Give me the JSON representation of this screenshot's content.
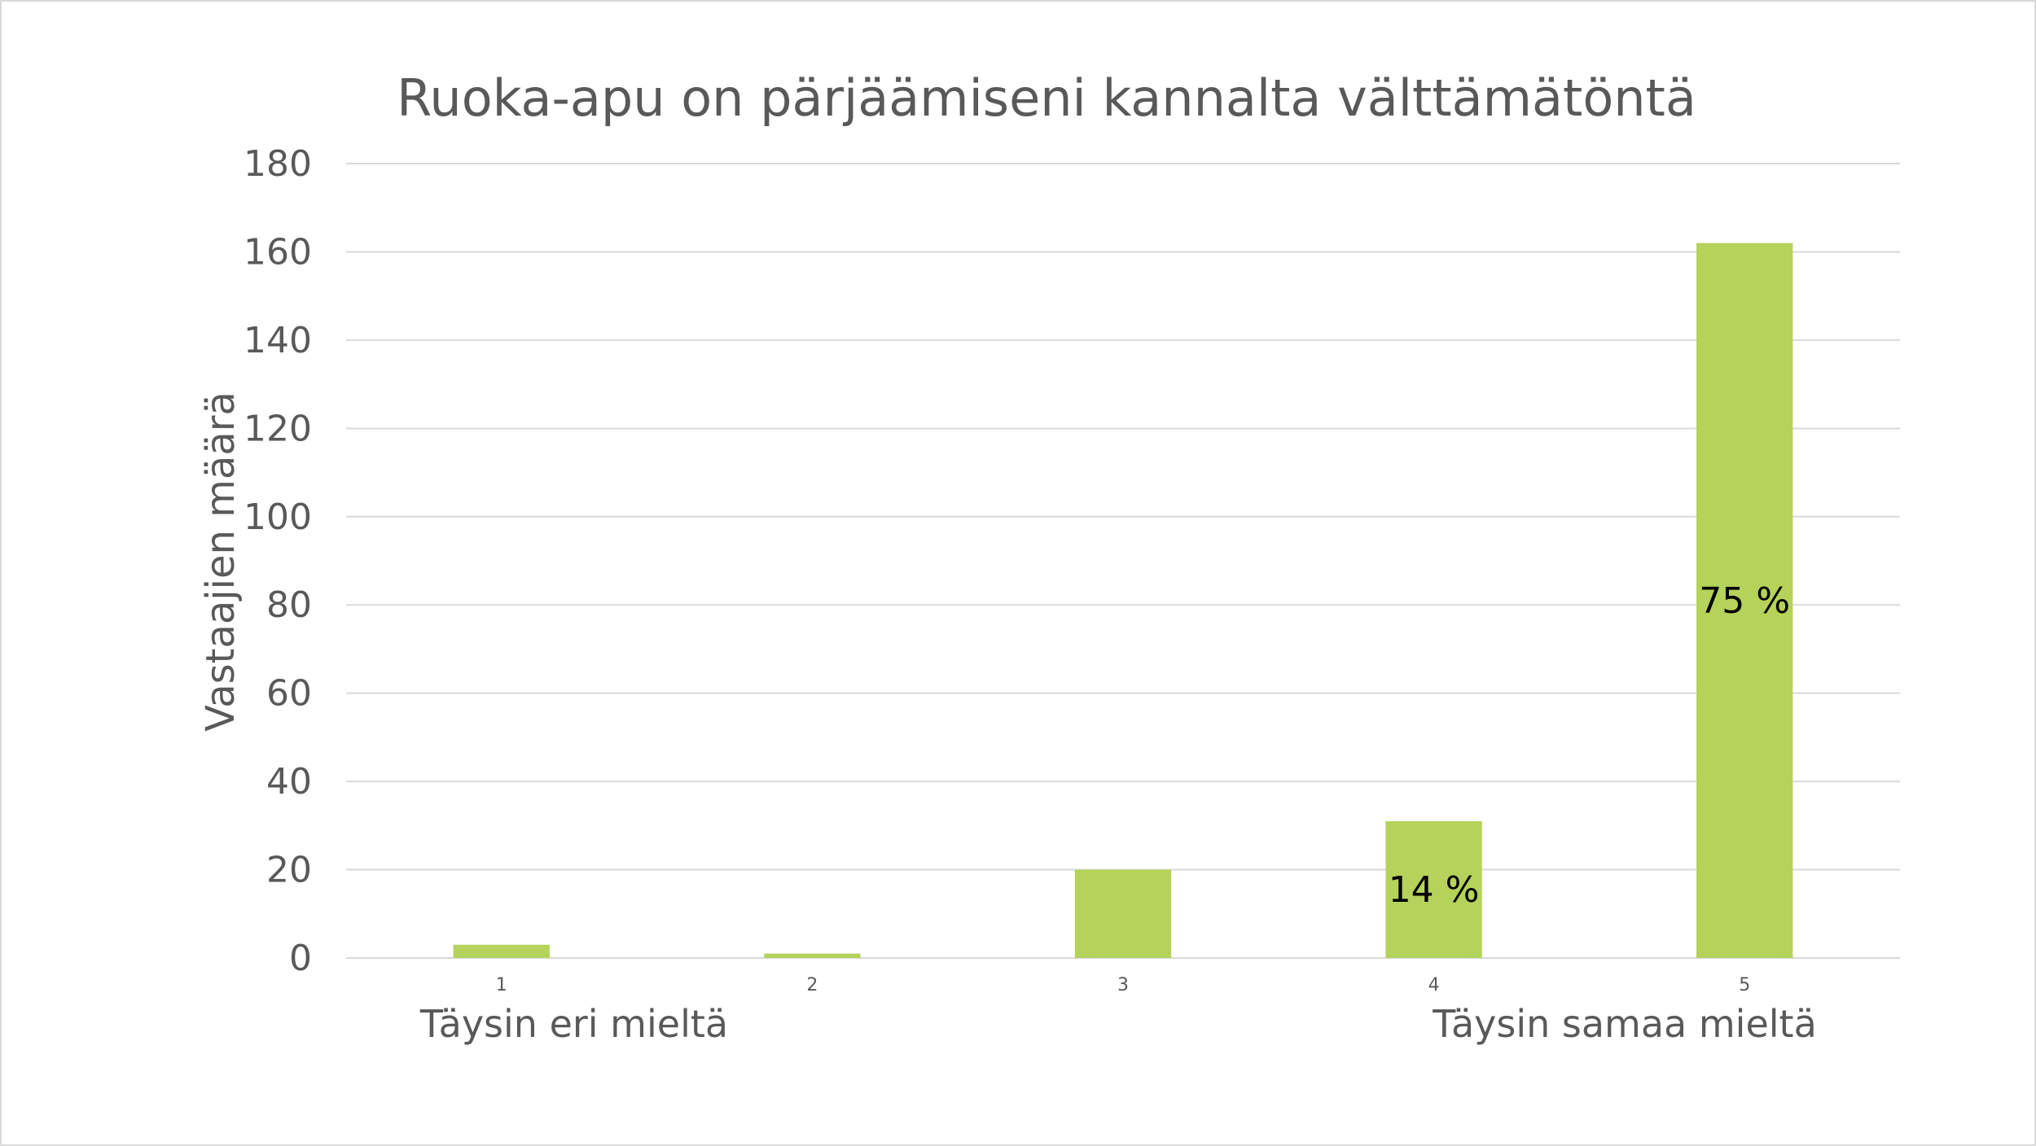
{
  "chart_data": {
    "type": "bar",
    "title": "Ruoka-apu on pärjäämiseni kannalta välttämätöntä",
    "xlabel": "",
    "ylabel": "Vastaajien määrä",
    "categories": [
      "1",
      "2",
      "3",
      "4",
      "5"
    ],
    "values": [
      3,
      1,
      20,
      31,
      162
    ],
    "data_labels": [
      "",
      "",
      "",
      "14 %",
      "75 %"
    ],
    "ylim": [
      0,
      180
    ],
    "yticks": [
      0,
      20,
      40,
      60,
      80,
      100,
      120,
      140,
      160,
      180
    ],
    "grid": true,
    "legend": "none",
    "bar_color": "#b5d25a",
    "annotations": {
      "left": "Täysin eri mieltä",
      "right": "Täysin samaa mieltä"
    }
  }
}
